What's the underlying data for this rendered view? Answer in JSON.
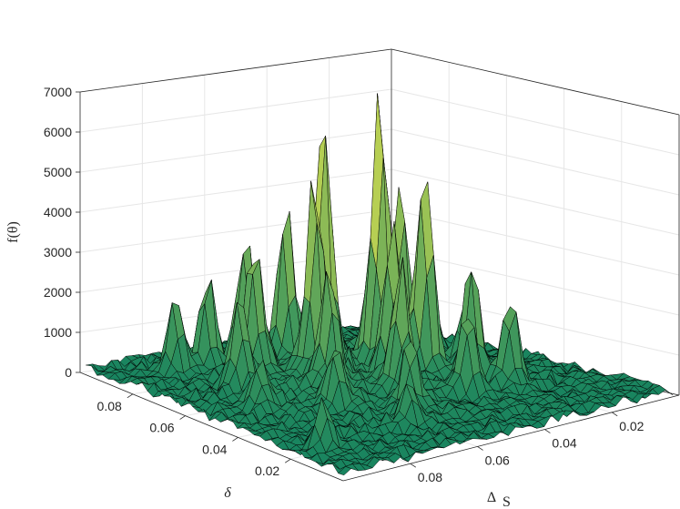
{
  "chart_data": {
    "type": "surface",
    "zlabel": "f(θ)",
    "ylabel": "δ",
    "xlabel": "Δ",
    "xlabel_subscript": "S",
    "zlim": [
      0,
      7000
    ],
    "z_ticks": [
      {
        "value": 0,
        "label": "0"
      },
      {
        "value": 1000,
        "label": "1000"
      },
      {
        "value": 2000,
        "label": "2000"
      },
      {
        "value": 3000,
        "label": "3000"
      },
      {
        "value": 4000,
        "label": "4000"
      },
      {
        "value": 5000,
        "label": "5000"
      },
      {
        "value": 6000,
        "label": "6000"
      },
      {
        "value": 7000,
        "label": "7000"
      }
    ],
    "delta_ticks": [
      {
        "value": 0.02,
        "label": "0.02"
      },
      {
        "value": 0.04,
        "label": "0.04"
      },
      {
        "value": 0.06,
        "label": "0.06"
      },
      {
        "value": 0.08,
        "label": "0.08"
      }
    ],
    "delta_s_ticks": [
      {
        "value": 0.02,
        "label": "0.02"
      },
      {
        "value": 0.04,
        "label": "0.04"
      },
      {
        "value": 0.06,
        "label": "0.06"
      },
      {
        "value": 0.08,
        "label": "0.08"
      }
    ],
    "grid": true,
    "colormap": "summer",
    "colors": {
      "low": "#1c8563",
      "high": "#f2f24d",
      "edge": "#000000",
      "axis": "#262626",
      "grid": "#e6e6e6"
    },
    "peaks": [
      {
        "delta_s": 0.041,
        "delta": 0.058,
        "value": 7050
      },
      {
        "delta_s": 0.052,
        "delta": 0.066,
        "value": 6200
      },
      {
        "delta_s": 0.036,
        "delta": 0.048,
        "value": 5150
      },
      {
        "delta_s": 0.047,
        "delta": 0.072,
        "value": 5000
      },
      {
        "delta_s": 0.058,
        "delta": 0.062,
        "value": 4700
      },
      {
        "delta_s": 0.033,
        "delta": 0.06,
        "value": 4300
      },
      {
        "delta_s": 0.044,
        "delta": 0.05,
        "value": 3800
      },
      {
        "delta_s": 0.055,
        "delta": 0.076,
        "value": 3700
      },
      {
        "delta_s": 0.066,
        "delta": 0.078,
        "value": 3200
      },
      {
        "delta_s": 0.07,
        "delta": 0.07,
        "value": 3300
      },
      {
        "delta_s": 0.03,
        "delta": 0.038,
        "value": 3000
      },
      {
        "delta_s": 0.05,
        "delta": 0.04,
        "value": 3100
      },
      {
        "delta_s": 0.062,
        "delta": 0.052,
        "value": 2800
      },
      {
        "delta_s": 0.074,
        "delta": 0.083,
        "value": 2200
      },
      {
        "delta_s": 0.079,
        "delta": 0.065,
        "value": 2300
      },
      {
        "delta_s": 0.025,
        "delta": 0.03,
        "value": 2100
      },
      {
        "delta_s": 0.038,
        "delta": 0.03,
        "value": 2000
      },
      {
        "delta_s": 0.057,
        "delta": 0.028,
        "value": 1800
      },
      {
        "delta_s": 0.083,
        "delta": 0.084,
        "value": 1800
      },
      {
        "delta_s": 0.07,
        "delta": 0.04,
        "value": 1500
      },
      {
        "delta_s": 0.085,
        "delta": 0.05,
        "value": 1200
      },
      {
        "delta_s": 0.02,
        "delta": 0.052,
        "value": 1300
      },
      {
        "delta_s": 0.09,
        "delta": 0.02,
        "value": 1100
      },
      {
        "delta_s": 0.015,
        "delta": 0.07,
        "value": 900
      },
      {
        "delta_s": 0.064,
        "delta": 0.02,
        "value": 1000
      }
    ]
  }
}
